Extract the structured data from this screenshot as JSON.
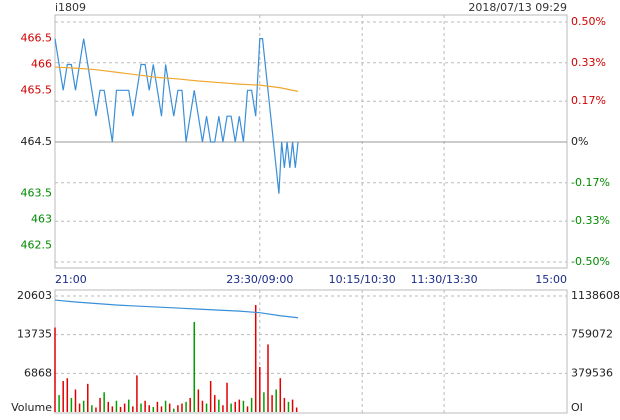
{
  "chart_data": [
    {
      "type": "line",
      "title": "i1809",
      "subtitle": "2018/07/13 09:29",
      "xlim": [
        0,
        375
      ],
      "xticks": [
        {
          "value": 0,
          "label": "21:00"
        },
        {
          "value": 150,
          "label": "23:30/09:00"
        },
        {
          "value": 225,
          "label": "10:15/10:30"
        },
        {
          "value": 285,
          "label": "11:30/13:30"
        },
        {
          "value": 375,
          "label": "15:00"
        }
      ],
      "ylim": [
        462.1775,
        466.8225
      ],
      "yticks": [
        466.5,
        466.0,
        465.5,
        464.5,
        463.5,
        463.0,
        462.5
      ],
      "y2lim": [
        -0.5,
        0.5
      ],
      "y2ticks": [
        {
          "value": 0.5,
          "label": "0.50%"
        },
        {
          "value": 0.33,
          "label": "0.33%"
        },
        {
          "value": 0.17,
          "label": "0.17%"
        },
        {
          "value": 0,
          "label": "0%"
        },
        {
          "value": -0.17,
          "label": "-0.17%"
        },
        {
          "value": -0.33,
          "label": "-0.33%"
        },
        {
          "value": -0.5,
          "label": "-0.50%"
        }
      ],
      "series": [
        {
          "color": "#3a8fd8",
          "x": [
            0,
            3,
            6,
            9,
            12,
            15,
            18,
            21,
            24,
            27,
            30,
            33,
            36,
            39,
            42,
            45,
            48,
            51,
            54,
            57,
            60,
            63,
            66,
            69,
            72,
            75,
            78,
            81,
            84,
            87,
            90,
            93,
            96,
            99,
            102,
            105,
            108,
            111,
            114,
            117,
            120,
            123,
            126,
            129,
            132,
            135,
            138,
            141,
            144,
            147,
            150,
            152,
            154,
            156,
            158,
            160,
            162,
            164,
            166,
            168,
            170,
            172,
            174,
            176,
            178
          ],
          "values": [
            466.5,
            466.0,
            465.5,
            466.0,
            466.0,
            465.5,
            466.0,
            466.5,
            466.0,
            465.5,
            465.0,
            465.5,
            465.5,
            465.0,
            464.5,
            465.5,
            465.5,
            465.5,
            465.5,
            465.0,
            465.5,
            466.0,
            466.0,
            465.5,
            466.0,
            465.5,
            465.0,
            466.0,
            465.5,
            465.0,
            465.5,
            465.5,
            464.5,
            465.0,
            465.5,
            465.0,
            464.5,
            465.0,
            464.5,
            464.5,
            465.0,
            464.5,
            465.0,
            465.0,
            464.5,
            465.0,
            464.5,
            465.5,
            465.5,
            465.0,
            466.5,
            466.5,
            466.0,
            465.5,
            465.0,
            464.5,
            464.0,
            463.5,
            464.5,
            464.0,
            464.5,
            464.0,
            464.5,
            464.0,
            464.5
          ]
        },
        {
          "color": "#f0a830",
          "x": [
            0,
            15,
            30,
            45,
            60,
            75,
            90,
            105,
            120,
            135,
            150,
            165,
            178
          ],
          "values": [
            465.95,
            465.93,
            465.9,
            465.85,
            465.8,
            465.75,
            465.72,
            465.68,
            465.65,
            465.62,
            465.6,
            465.55,
            465.48
          ]
        }
      ]
    },
    {
      "type": "bar",
      "ylabel": "Volume",
      "y2label": "OI",
      "ylim": [
        0,
        20603
      ],
      "yticks": [
        6868,
        13735,
        20603
      ],
      "y2lim": [
        0,
        1138608
      ],
      "y2ticks": [
        379536,
        759072,
        1138608
      ],
      "series": [
        {
          "x": [
            0,
            3,
            6,
            9,
            12,
            15,
            18,
            21,
            24,
            27,
            30,
            33,
            36,
            39,
            42,
            45,
            48,
            51,
            54,
            57,
            60,
            63,
            66,
            69,
            72,
            75,
            78,
            81,
            84,
            87,
            90,
            93,
            96,
            99,
            102,
            105,
            108,
            111,
            114,
            117,
            120,
            123,
            126,
            129,
            132,
            135,
            138,
            141,
            144,
            147,
            150,
            153,
            156,
            159,
            162,
            165,
            168,
            171,
            174,
            177
          ],
          "values": [
            15000,
            3000,
            5500,
            6000,
            2500,
            4000,
            1500,
            2000,
            5000,
            1200,
            800,
            2500,
            3500,
            1800,
            1000,
            2000,
            900,
            1500,
            2200,
            1000,
            6500,
            1500,
            2000,
            1200,
            900,
            1800,
            1000,
            2000,
            1500,
            600,
            1200,
            1500,
            1800,
            2500,
            16000,
            4000,
            2000,
            1500,
            5500,
            3000,
            2200,
            1200,
            5200,
            1500,
            1800,
            2200,
            2000,
            1000,
            2500,
            19000,
            8000,
            3500,
            12000,
            3000,
            4000,
            6000,
            2500,
            1800,
            2200,
            800
          ],
          "colors": [
            "#e00000",
            "#009f00",
            "#e00000",
            "#e00000",
            "#009f00",
            "#e00000",
            "#e00000",
            "#009f00",
            "#e00000",
            "#009f00",
            "#e00000",
            "#e00000",
            "#009f00",
            "#e00000",
            "#e00000",
            "#009f00",
            "#e00000",
            "#e00000",
            "#009f00",
            "#e00000",
            "#e00000",
            "#009f00",
            "#e00000",
            "#e00000",
            "#009f00",
            "#e00000",
            "#e00000",
            "#009f00",
            "#e00000",
            "#009f00",
            "#e00000",
            "#e00000",
            "#009f00",
            "#e00000",
            "#009f00",
            "#e00000",
            "#e00000",
            "#009f00",
            "#e00000",
            "#e00000",
            "#009f00",
            "#e00000",
            "#e00000",
            "#009f00",
            "#e00000",
            "#e00000",
            "#009f00",
            "#e00000",
            "#009f00",
            "#e00000",
            "#e00000",
            "#009f00",
            "#e00000",
            "#e00000",
            "#009f00",
            "#e00000",
            "#e00000",
            "#009f00",
            "#e00000",
            "#e00000"
          ]
        },
        {
          "axis": "y2",
          "color": "#3a8fd8",
          "x": [
            0,
            15,
            30,
            45,
            60,
            75,
            90,
            105,
            120,
            135,
            150,
            165,
            178
          ],
          "values": [
            1099000,
            1080000,
            1065000,
            1050000,
            1040000,
            1030000,
            1020000,
            1010000,
            1000000,
            990000,
            975000,
            945000,
            925000
          ]
        }
      ]
    }
  ]
}
